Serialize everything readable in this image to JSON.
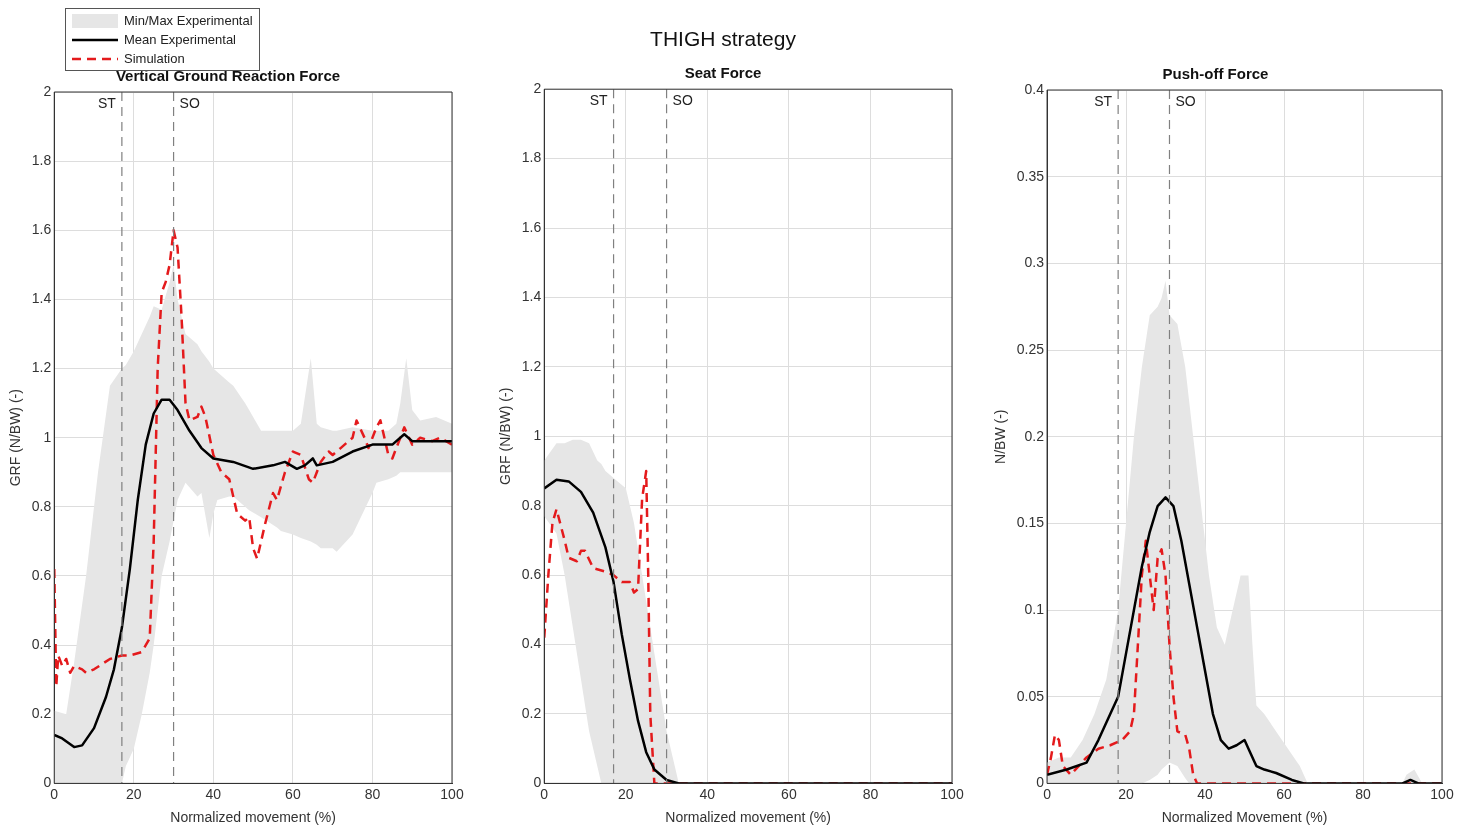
{
  "chart_data": [
    {
      "type": "line",
      "title": "Vertical Ground Reaction Force",
      "xlabel": "Normalized movement (%)",
      "ylabel": "GRF (N/BW) (-)",
      "xlim": [
        0,
        100
      ],
      "xticks": [
        0,
        20,
        40,
        60,
        80,
        100
      ],
      "ylim": [
        0,
        2
      ],
      "yticks": [
        0,
        0.2,
        0.4,
        0.6,
        0.8,
        1,
        1.2,
        1.4,
        1.6,
        1.8,
        2
      ],
      "grid": true,
      "legend": "top left",
      "ref_lines": [
        {
          "axis": "x",
          "value": 17,
          "label": "ST",
          "color": "#808080",
          "line_style": "dashed"
        },
        {
          "axis": "x",
          "value": 30,
          "label": "SO",
          "color": "#808080",
          "line_style": "dashed"
        }
      ],
      "series": [
        {
          "name": "Min/Max Experimental",
          "type": "area",
          "color": "#e6e6e6",
          "x": [
            0,
            3,
            5,
            8,
            11,
            14,
            17,
            18,
            20,
            22,
            24,
            25,
            27,
            29,
            30,
            31,
            33,
            36,
            37,
            39,
            40,
            41,
            44,
            45,
            48,
            49,
            52,
            56,
            57,
            60,
            62,
            64.5,
            66,
            67,
            70,
            71,
            75,
            80,
            81,
            84,
            86,
            87,
            88.5,
            90,
            92,
            96,
            100
          ],
          "values": [
            null,
            null,
            null,
            null,
            null,
            null,
            null,
            null,
            null,
            null,
            null,
            null,
            null,
            null,
            null,
            null,
            null,
            null,
            null,
            null,
            null,
            null,
            null,
            null,
            null,
            null,
            null,
            null,
            null,
            null,
            null,
            null,
            null,
            null,
            null,
            null,
            null,
            null,
            null,
            null,
            null,
            null,
            null,
            null,
            null,
            null,
            null
          ],
          "lower": [
            0,
            0,
            0,
            0,
            0,
            0,
            0,
            0.05,
            0.1,
            0.2,
            0.32,
            0.4,
            0.6,
            0.7,
            0.76,
            0.82,
            0.87,
            0.83,
            0.84,
            0.71,
            0.78,
            0.82,
            0.83,
            0.83,
            0.8,
            0.79,
            0.77,
            0.74,
            0.73,
            0.72,
            0.71,
            0.7,
            0.69,
            0.68,
            0.68,
            0.67,
            0.72,
            0.84,
            0.87,
            0.88,
            0.89,
            0.9,
            0.9,
            0.9,
            0.9,
            0.9,
            0.9
          ],
          "upper": [
            0.21,
            0.2,
            0.35,
            0.6,
            0.9,
            1.15,
            1.2,
            1.21,
            1.25,
            1.3,
            1.35,
            1.38,
            1.37,
            1.45,
            1.5,
            1.4,
            1.3,
            1.27,
            1.25,
            1.22,
            1.2,
            1.19,
            1.16,
            1.15,
            1.1,
            1.08,
            1.02,
            1.02,
            1.02,
            1.02,
            1.04,
            1.23,
            1.04,
            1.03,
            1.02,
            1.02,
            1.03,
            1.02,
            1.02,
            1.02,
            1.04,
            1.1,
            1.23,
            1.08,
            1.05,
            1.06,
            1.04
          ]
        },
        {
          "name": "Mean Experimental",
          "color": "#000000",
          "line_style": "solid",
          "x": [
            0,
            2,
            5,
            7,
            10,
            13,
            15,
            17,
            19,
            21,
            23,
            25,
            27,
            29,
            31,
            34,
            37,
            40,
            45,
            50,
            55,
            58,
            61,
            63,
            65,
            66,
            70,
            75,
            80,
            85,
            88,
            90,
            95,
            100
          ],
          "values": [
            0.14,
            0.13,
            0.105,
            0.11,
            0.16,
            0.25,
            0.33,
            0.45,
            0.62,
            0.82,
            0.98,
            1.07,
            1.11,
            1.11,
            1.08,
            1.02,
            0.97,
            0.94,
            0.93,
            0.91,
            0.92,
            0.93,
            0.91,
            0.92,
            0.94,
            0.92,
            0.93,
            0.96,
            0.98,
            0.98,
            1.01,
            0.99,
            0.99,
            0.99
          ]
        },
        {
          "name": "Simulation",
          "color": "#e41a1c",
          "line_style": "dashed",
          "x": [
            0,
            0.5,
            1,
            2,
            3,
            4,
            5,
            7,
            8,
            10,
            14,
            17,
            19,
            22,
            24,
            25,
            26,
            27,
            28,
            29,
            30,
            31,
            32,
            33,
            34,
            36,
            37,
            38,
            40,
            42,
            44,
            46,
            48,
            49,
            50,
            51,
            53,
            55,
            56,
            58,
            60,
            62,
            64,
            65,
            67,
            69,
            70,
            72,
            75,
            76,
            78,
            79,
            81,
            82,
            84,
            85,
            87,
            88,
            90,
            92,
            95,
            97,
            100
          ],
          "values": [
            0.62,
            0.28,
            0.37,
            0.34,
            0.36,
            0.32,
            0.34,
            0.33,
            0.32,
            0.33,
            0.36,
            0.37,
            0.37,
            0.38,
            0.42,
            0.7,
            1.2,
            1.42,
            1.45,
            1.5,
            1.6,
            1.55,
            1.35,
            1.1,
            1.05,
            1.06,
            1.09,
            1.06,
            0.95,
            0.9,
            0.88,
            0.78,
            0.76,
            0.77,
            0.68,
            0.65,
            0.75,
            0.84,
            0.82,
            0.9,
            0.96,
            0.95,
            0.88,
            0.87,
            0.93,
            0.96,
            0.95,
            0.97,
            1,
            1.05,
            1,
            0.97,
            1.03,
            1.05,
            0.95,
            0.94,
            1,
            1.03,
            0.98,
            1,
            0.99,
            1,
            0.98
          ]
        }
      ]
    },
    {
      "type": "line",
      "title": "THIGH strategy",
      "subtitle": "Seat Force",
      "xlabel": "Normalized movement (%)",
      "ylabel": "GRF (N/BW) (-)",
      "xlim": [
        0,
        100
      ],
      "xticks": [
        0,
        20,
        40,
        60,
        80,
        100
      ],
      "ylim": [
        0,
        2
      ],
      "yticks": [
        0,
        0.2,
        0.4,
        0.6,
        0.8,
        1,
        1.2,
        1.4,
        1.6,
        1.8,
        2
      ],
      "grid": true,
      "ref_lines": [
        {
          "axis": "x",
          "value": 17,
          "label": "ST",
          "color": "#808080",
          "line_style": "dashed"
        },
        {
          "axis": "x",
          "value": 30,
          "label": "SO",
          "color": "#808080",
          "line_style": "dashed"
        }
      ],
      "series": [
        {
          "type": "area",
          "color": "#e6e6e6",
          "x": [
            0,
            3,
            5,
            7,
            9,
            11,
            13,
            14,
            15,
            18,
            20,
            22,
            24,
            26,
            28,
            30,
            32,
            33,
            100
          ],
          "values": [
            null,
            null,
            null,
            null,
            null,
            null,
            null,
            null,
            null,
            null,
            null,
            null,
            null,
            null,
            null,
            null,
            null,
            null,
            null
          ],
          "lower": [
            0.77,
            0.72,
            0.6,
            0.45,
            0.3,
            0.15,
            0.05,
            0,
            0,
            0,
            0,
            0,
            0,
            0,
            0,
            0,
            0,
            0,
            0
          ],
          "upper": [
            0.93,
            0.98,
            0.98,
            0.99,
            0.99,
            0.98,
            0.93,
            0.92,
            0.9,
            0.87,
            0.85,
            0.75,
            0.6,
            0.45,
            0.3,
            0.15,
            0.05,
            0,
            0
          ]
        },
        {
          "color": "#000000",
          "line_style": "solid",
          "x": [
            0,
            3,
            6,
            9,
            12,
            15,
            17,
            19,
            21,
            23,
            25,
            27,
            30,
            33,
            100
          ],
          "values": [
            0.85,
            0.875,
            0.87,
            0.84,
            0.78,
            0.68,
            0.58,
            0.43,
            0.3,
            0.18,
            0.09,
            0.04,
            0.01,
            0,
            0
          ]
        },
        {
          "color": "#e41a1c",
          "line_style": "dashed",
          "x": [
            0,
            1,
            2,
            3,
            5,
            6,
            8,
            9,
            10,
            12,
            15,
            17,
            19,
            21,
            22,
            23,
            24,
            25,
            25.5,
            26,
            27,
            100
          ],
          "values": [
            0.42,
            0.6,
            0.75,
            0.79,
            0.7,
            0.65,
            0.64,
            0.67,
            0.67,
            0.62,
            0.61,
            0.6,
            0.58,
            0.58,
            0.55,
            0.56,
            0.82,
            0.9,
            0.6,
            0.2,
            0,
            0
          ]
        }
      ]
    },
    {
      "type": "line",
      "title": "Push-off Force",
      "xlabel": "Normalized Movement (%)",
      "ylabel": "N/BW (-)",
      "xlim": [
        0,
        100
      ],
      "xticks": [
        0,
        20,
        40,
        60,
        80,
        100
      ],
      "ylim": [
        0,
        0.4
      ],
      "yticks": [
        0,
        0.05,
        0.1,
        0.15,
        0.2,
        0.25,
        0.3,
        0.35,
        0.4
      ],
      "grid": true,
      "ref_lines": [
        {
          "axis": "x",
          "value": 18,
          "label": "ST",
          "color": "#808080",
          "line_style": "dashed"
        },
        {
          "axis": "x",
          "value": 31,
          "label": "SO",
          "color": "#808080",
          "line_style": "dashed"
        }
      ],
      "series": [
        {
          "type": "area",
          "color": "#e6e6e6",
          "x": [
            0,
            3,
            6,
            9,
            12,
            15,
            18,
            20,
            22,
            24,
            26,
            28,
            29,
            30,
            31,
            33,
            35,
            36,
            37,
            39,
            41,
            43,
            45,
            47,
            49,
            51,
            52,
            53,
            55,
            58,
            61,
            64,
            66,
            90,
            91,
            93,
            95,
            100
          ],
          "values": [
            null,
            null,
            null,
            null,
            null,
            null,
            null,
            null,
            null,
            null,
            null,
            null,
            null,
            null,
            null,
            null,
            null,
            null,
            null,
            null,
            null,
            null,
            null,
            null,
            null,
            null,
            null,
            null,
            null,
            null,
            null,
            null,
            null,
            null,
            null,
            null,
            null,
            null
          ],
          "lower": [
            0,
            0,
            0,
            0,
            0,
            0,
            0,
            0,
            0,
            0,
            0.002,
            0.005,
            0.008,
            0.01,
            0.012,
            0.01,
            0.003,
            0,
            0,
            0,
            0,
            0,
            0,
            0,
            0,
            0,
            0,
            0,
            0,
            0,
            0,
            0,
            0,
            0,
            0,
            0,
            0,
            0
          ],
          "upper": [
            0.012,
            0.015,
            0.015,
            0.025,
            0.04,
            0.06,
            0.1,
            0.15,
            0.2,
            0.24,
            0.27,
            0.275,
            0.28,
            0.29,
            0.27,
            0.265,
            0.24,
            0.22,
            0.2,
            0.16,
            0.12,
            0.09,
            0.08,
            0.1,
            0.12,
            0.12,
            0.08,
            0.045,
            0.04,
            0.03,
            0.02,
            0.01,
            0,
            0,
            0.005,
            0.008,
            0,
            0
          ]
        },
        {
          "color": "#000000",
          "line_style": "solid",
          "x": [
            0,
            5,
            10,
            13,
            16,
            18,
            20,
            22,
            24,
            26,
            28,
            30,
            32,
            34,
            36,
            38,
            40,
            42,
            44,
            46,
            48,
            50,
            51,
            53,
            55,
            58,
            62,
            65,
            90,
            92,
            94,
            100
          ],
          "values": [
            0.005,
            0.008,
            0.012,
            0.025,
            0.04,
            0.05,
            0.075,
            0.1,
            0.125,
            0.145,
            0.16,
            0.165,
            0.16,
            0.14,
            0.115,
            0.09,
            0.065,
            0.04,
            0.025,
            0.02,
            0.022,
            0.025,
            0.02,
            0.01,
            0.008,
            0.006,
            0.002,
            0,
            0,
            0.002,
            0,
            0
          ]
        },
        {
          "color": "#e41a1c",
          "line_style": "dashed",
          "x": [
            0,
            1,
            2,
            3,
            4,
            6,
            8,
            10,
            13,
            16,
            19,
            21,
            22,
            23,
            24,
            25,
            26,
            27,
            28,
            29,
            30,
            31,
            32,
            33,
            35,
            36,
            37,
            38,
            100
          ],
          "values": [
            0.005,
            0.015,
            0.028,
            0.025,
            0.01,
            0.005,
            0.01,
            0.015,
            0.02,
            0.022,
            0.025,
            0.03,
            0.04,
            0.08,
            0.12,
            0.14,
            0.12,
            0.1,
            0.13,
            0.135,
            0.12,
            0.08,
            0.05,
            0.03,
            0.028,
            0.02,
            0.005,
            0,
            0
          ]
        }
      ]
    }
  ]
}
